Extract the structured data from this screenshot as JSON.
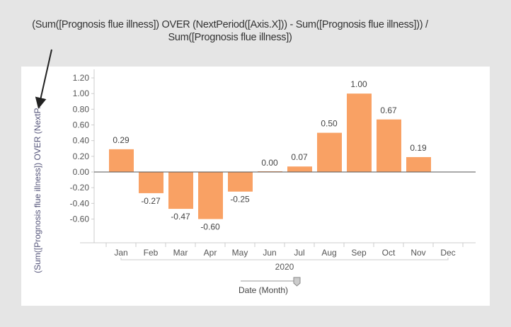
{
  "annotation": {
    "line1": "(Sum([Prognosis flue illness]) OVER (NextPeriod([Axis.X])) - Sum([Prognosis flue illness])) /",
    "line2": "Sum([Prognosis flue illness])"
  },
  "chart_data": {
    "type": "bar",
    "categories": [
      "Jan",
      "Feb",
      "Mar",
      "Apr",
      "May",
      "Jun",
      "Jul",
      "Aug",
      "Sep",
      "Oct",
      "Nov",
      "Dec"
    ],
    "values": [
      0.29,
      -0.27,
      -0.47,
      -0.6,
      -0.25,
      0.0,
      0.07,
      0.5,
      1.0,
      0.67,
      0.19,
      null
    ],
    "data_labels": [
      "0.29",
      "-0.27",
      "-0.47",
      "-0.60",
      "-0.25",
      "0.00",
      "0.07",
      "0.50",
      "1.00",
      "0.67",
      "0.19",
      ""
    ],
    "ylabel": "(Sum([Prognosis flue illness]) OVER (NextP...",
    "y_ticks": [
      "1.20",
      "1.00",
      "0.80",
      "0.60",
      "0.40",
      "0.20",
      "0.00",
      "-0.20",
      "-0.40",
      "-0.60"
    ],
    "ylim": [
      -0.9,
      1.3
    ],
    "x_group_label": "2020",
    "xlabel": "Date (Month)",
    "bar_color": "#f9a164",
    "grid": false,
    "legend": "none"
  }
}
